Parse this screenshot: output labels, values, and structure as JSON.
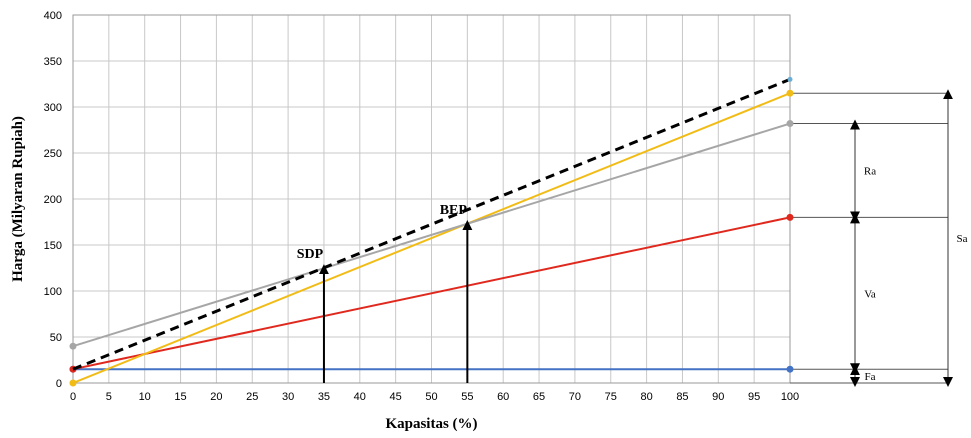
{
  "chart_data": {
    "type": "line",
    "xlabel": "Kapasitas (%)",
    "ylabel": "Harga (Milyaran Rupiah)",
    "xlim": [
      0,
      100
    ],
    "ylim": [
      0,
      400
    ],
    "x_ticks": [
      0,
      5,
      10,
      15,
      20,
      25,
      30,
      35,
      40,
      45,
      50,
      55,
      60,
      65,
      70,
      75,
      80,
      85,
      90,
      95,
      100
    ],
    "y_ticks": [
      0,
      50,
      100,
      150,
      200,
      250,
      300,
      350,
      400
    ],
    "grid": true,
    "series": [
      {
        "key": "fa",
        "color": "#4472c4",
        "dashed": false,
        "x": [
          0,
          100
        ],
        "y": [
          15,
          15
        ]
      },
      {
        "key": "va",
        "color": "#e0291e",
        "dashed": false,
        "x": [
          0,
          100
        ],
        "y": [
          15,
          180
        ]
      },
      {
        "key": "sa",
        "color": "#f2bc17",
        "dashed": false,
        "x": [
          0,
          100
        ],
        "y": [
          0,
          315
        ]
      },
      {
        "key": "ra",
        "color": "#a6a6a6",
        "dashed": false,
        "x": [
          0,
          100
        ],
        "y": [
          40,
          282
        ]
      },
      {
        "key": "total",
        "color": "#000000",
        "dashed": true,
        "x": [
          0,
          100
        ],
        "y": [
          15,
          330
        ]
      }
    ],
    "annotations": [
      {
        "label": "SDP",
        "x": 35,
        "y_top": 127
      },
      {
        "label": "BEP",
        "x": 55,
        "y_top": 175
      }
    ],
    "dimensions": [
      {
        "label": "Ra",
        "from": 180,
        "to": 282
      },
      {
        "label": "Va",
        "from": 15,
        "to": 180
      },
      {
        "label": "Fa",
        "from": 0,
        "to": 15
      },
      {
        "label": "Sa",
        "from": 0,
        "to": 315
      }
    ]
  }
}
